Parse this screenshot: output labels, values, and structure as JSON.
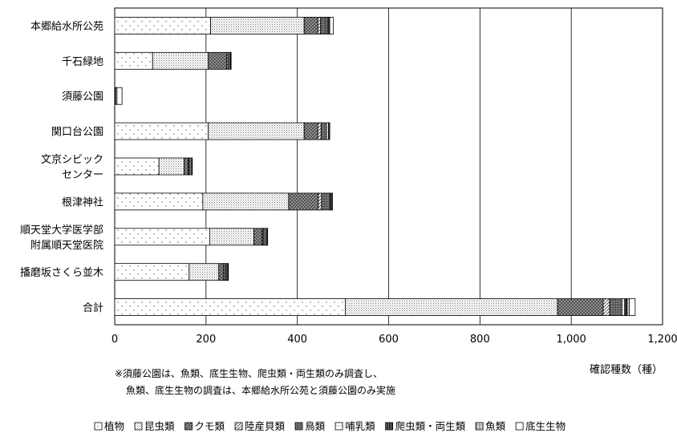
{
  "chart_data": {
    "type": "bar",
    "orientation": "horizontal",
    "stacked": true,
    "categories": [
      [
        "本郷給水所公苑"
      ],
      [
        "千石緑地"
      ],
      [
        "須藤公園"
      ],
      [
        "関口台公園"
      ],
      [
        "文京シビック",
        "センター"
      ],
      [
        "根津神社"
      ],
      [
        "順天堂大学医学部",
        "附属順天堂医院"
      ],
      [
        "播磨坂さくら並木"
      ],
      [
        "合計"
      ]
    ],
    "series": [
      {
        "name": "植物",
        "color": "#ffffff",
        "pattern": "pat-plant",
        "values": [
          210,
          83,
          0,
          205,
          97,
          193,
          208,
          163,
          505
        ]
      },
      {
        "name": "昆虫類",
        "color": "#e6e6e6",
        "pattern": "pat-insect",
        "values": [
          205,
          122,
          0,
          210,
          55,
          188,
          97,
          65,
          465
        ]
      },
      {
        "name": "クモ類",
        "color": "#555555",
        "pattern": "pat-spider",
        "values": [
          30,
          40,
          0,
          30,
          9,
          65,
          18,
          10,
          100
        ]
      },
      {
        "name": "陸産貝類",
        "color": "#bbbbbb",
        "pattern": "pat-snail",
        "values": [
          6,
          3,
          0,
          7,
          2,
          7,
          2,
          3,
          14
        ]
      },
      {
        "name": "鳥類",
        "color": "#777777",
        "pattern": "pat-bird",
        "values": [
          12,
          5,
          0,
          12,
          6,
          19,
          7,
          5,
          27
        ]
      },
      {
        "name": "哺乳類",
        "color": "#ffffff",
        "pattern": "pat-mammal",
        "values": [
          3,
          1,
          0,
          4,
          1,
          2,
          2,
          2,
          6
        ]
      },
      {
        "name": "爬虫類・両生類",
        "color": "#666666",
        "pattern": "pat-rept",
        "values": [
          3,
          1,
          2,
          3,
          0,
          3,
          1,
          1,
          5
        ]
      },
      {
        "name": "魚類",
        "color": "#aaaaaa",
        "pattern": "pat-fish",
        "values": [
          2,
          0,
          3,
          0,
          0,
          0,
          0,
          0,
          5
        ]
      },
      {
        "name": "底生生物",
        "color": "#ffffff",
        "pattern": "pat-benthos",
        "values": [
          8,
          0,
          11,
          0,
          0,
          0,
          0,
          0,
          13
        ]
      }
    ],
    "xlim": [
      0,
      1200
    ],
    "xticks": [
      "0",
      "200",
      "400",
      "600",
      "800",
      "1,000",
      "1,200"
    ],
    "xtick_values": [
      0,
      200,
      400,
      600,
      800,
      1000,
      1200
    ],
    "xlabel": "確認種数（種）",
    "grid": "vertical",
    "legend_position": "bottom"
  },
  "notes": [
    "※須藤公園は、魚類、底生生物、爬虫類・両生類のみ調査し、",
    "魚類、底生生物の調査は、本郷給水所公苑と須藤公園のみ実施"
  ]
}
